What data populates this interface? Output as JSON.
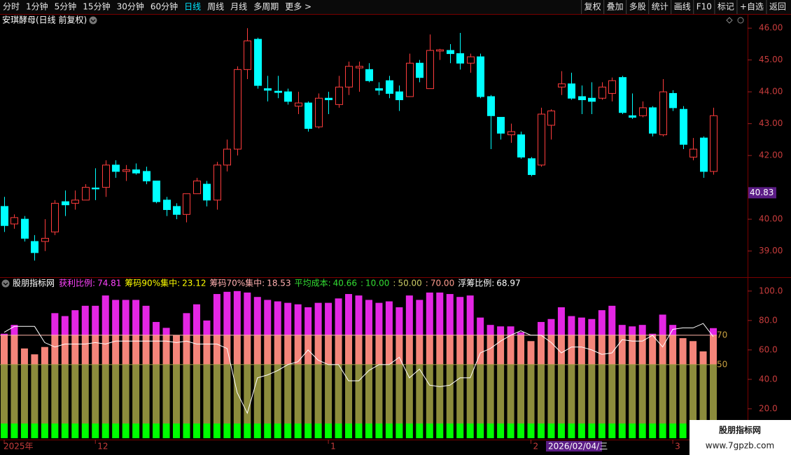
{
  "toolbar_left": [
    "分时",
    "1分钟",
    "5分钟",
    "15分钟",
    "30分钟",
    "60分钟",
    "日线",
    "周线",
    "月线",
    "多周期",
    "更多 >"
  ],
  "toolbar_active": 6,
  "toolbar_right": [
    "复权",
    "叠加",
    "多股",
    "统计",
    "画线",
    "F10",
    "标记",
    "+自选",
    "返回"
  ],
  "watermark": {
    "name": "股朋指标网",
    "url": "www.7gpzb.com"
  },
  "chart_data": [
    {
      "type": "candlestick",
      "title": "安琪酵母(日线 前复权)",
      "categories": [
        "2025年",
        null,
        null,
        null,
        null,
        null,
        null,
        null,
        null,
        "12",
        null,
        null,
        null,
        null,
        null,
        null,
        null,
        null,
        null,
        null,
        null,
        null,
        null,
        null,
        null,
        null,
        null,
        null,
        null,
        null,
        null,
        null,
        "1",
        null,
        null,
        null,
        null,
        null,
        null,
        null,
        null,
        null,
        null,
        null,
        null,
        null,
        null,
        null,
        null,
        null,
        null,
        null,
        "2",
        null,
        null,
        null,
        null,
        null,
        null,
        null,
        null,
        null,
        null,
        null,
        null,
        null,
        "3",
        null,
        null,
        null,
        null
      ],
      "open": [
        40.4,
        39.85,
        40.0,
        39.3,
        39.3,
        39.6,
        40.55,
        40.5,
        40.6,
        40.98,
        41.0,
        41.7,
        41.5,
        41.55,
        41.5,
        41.2,
        40.6,
        40.4,
        40.15,
        40.8,
        41.1,
        40.6,
        41.7,
        42.2,
        44.7,
        45.65,
        44.1,
        44.02,
        44.0,
        43.55,
        43.65,
        42.9,
        43.8,
        43.6,
        44.15,
        44.75,
        44.7,
        44.1,
        44.35,
        44.0,
        43.85,
        44.9,
        44.1,
        45.28,
        45.3,
        45.2,
        44.9,
        45.1,
        43.85,
        43.2,
        42.65,
        42.65,
        41.9,
        41.7,
        42.95,
        44.15,
        44.25,
        43.85,
        43.8,
        43.8,
        43.95,
        44.45,
        43.25,
        43.25,
        43.5,
        42.65,
        43.95,
        43.45,
        41.95,
        42.55,
        41.5
      ],
      "high": [
        40.7,
        40.15,
        40.1,
        39.5,
        40.0,
        40.6,
        40.9,
        40.9,
        41.1,
        41.6,
        41.85,
        41.85,
        41.7,
        41.75,
        41.65,
        41.2,
        40.7,
        40.5,
        40.8,
        41.3,
        41.2,
        41.8,
        42.5,
        44.8,
        46.0,
        45.7,
        44.5,
        44.5,
        44.1,
        44.0,
        43.7,
        43.95,
        44.0,
        44.5,
        44.95,
        44.95,
        44.9,
        44.3,
        44.5,
        44.2,
        45.2,
        45.0,
        45.8,
        45.35,
        45.5,
        45.85,
        45.2,
        45.2,
        43.9,
        43.2,
        43.0,
        42.75,
        41.95,
        43.5,
        43.45,
        44.65,
        44.6,
        44.2,
        44.3,
        44.3,
        44.45,
        44.5,
        43.95,
        43.7,
        43.55,
        44.4,
        44.05,
        43.55,
        42.55,
        42.6,
        43.5
      ],
      "low": [
        39.6,
        39.7,
        39.3,
        38.7,
        39.0,
        39.5,
        40.1,
        40.3,
        40.6,
        40.6,
        40.7,
        41.3,
        41.2,
        41.4,
        41.1,
        40.5,
        40.1,
        40.0,
        39.9,
        40.8,
        40.4,
        40.3,
        41.5,
        42.0,
        44.4,
        44.1,
        43.7,
        43.8,
        43.6,
        43.3,
        42.75,
        42.85,
        43.3,
        43.5,
        43.9,
        44.0,
        44.3,
        43.9,
        43.8,
        43.4,
        43.85,
        44.3,
        44.1,
        45.0,
        44.9,
        44.7,
        44.6,
        43.8,
        42.2,
        42.5,
        42.4,
        41.9,
        41.35,
        41.65,
        42.5,
        43.9,
        43.75,
        43.3,
        43.3,
        43.75,
        43.7,
        43.3,
        43.15,
        43.2,
        42.6,
        42.6,
        43.4,
        42.2,
        41.85,
        41.3,
        41.4
      ],
      "close": [
        39.8,
        40.05,
        39.4,
        38.95,
        39.4,
        40.5,
        40.45,
        40.6,
        41.0,
        40.95,
        41.7,
        41.5,
        41.55,
        41.45,
        41.2,
        40.55,
        40.3,
        40.15,
        40.8,
        41.2,
        40.6,
        41.7,
        42.2,
        44.7,
        45.6,
        44.2,
        44.05,
        43.98,
        43.7,
        43.65,
        42.85,
        43.8,
        43.75,
        44.15,
        44.8,
        44.8,
        44.35,
        44.05,
        43.95,
        43.75,
        44.9,
        44.45,
        45.3,
        45.32,
        45.2,
        44.9,
        45.1,
        43.85,
        43.25,
        42.7,
        42.75,
        41.95,
        41.4,
        43.3,
        43.4,
        44.25,
        43.8,
        43.75,
        43.7,
        44.15,
        44.35,
        43.35,
        43.2,
        43.5,
        42.7,
        44.0,
        43.5,
        42.35,
        42.2,
        41.5,
        43.25
      ],
      "up_color": "#ff3c3c",
      "down_color": "#00ffff",
      "ylim": [
        38.2,
        46.4
      ],
      "yticks": [
        {
          "value": 39,
          "label": "39.00"
        },
        {
          "value": 40,
          "label": "40.00"
        },
        {
          "value": 42,
          "label": "42.00"
        },
        {
          "value": 43,
          "label": "43.00"
        },
        {
          "value": 44,
          "label": "44.00"
        },
        {
          "value": 45,
          "label": "45.00"
        },
        {
          "value": 46,
          "label": "46.00"
        }
      ],
      "cursor_price": 40.83,
      "cursor_date": "2026/02/04/三"
    },
    {
      "type": "bar",
      "title": "股朋指标网",
      "readouts": [
        {
          "label": "获利比例:",
          "value": 74.81,
          "color": "#ff44ff"
        },
        {
          "label": "筹码90%集中:",
          "value": 23.12,
          "color": "#ffff00"
        },
        {
          "label": "筹码70%集中:",
          "value": 18.53,
          "color": "#ffb0b0"
        },
        {
          "label": "平均成本:",
          "value": 40.66,
          "color": "#33dd33"
        },
        {
          "label": ":",
          "value": {
            "value": 10,
            "label": "10.00"
          },
          "color": "#33dd33"
        },
        {
          "label": ":",
          "value": {
            "value": 50,
            "label": "50.00"
          },
          "color": "#cccc66"
        },
        {
          "label": ":",
          "value": {
            "value": 70,
            "label": "70.00"
          },
          "color": "#ff9d8f"
        },
        {
          "label": "浮筹比例:",
          "value": 68.97,
          "color": "#ffffff"
        }
      ],
      "series": [
        {
          "kind": "bar",
          "values": [
            71,
            77,
            61,
            57,
            62,
            85,
            83,
            87,
            90,
            90,
            97,
            94,
            94,
            94,
            90,
            79,
            75,
            70,
            85,
            91,
            80,
            98,
            99.5,
            100,
            99,
            96,
            94,
            93,
            92,
            91,
            89,
            92,
            92,
            95,
            98,
            97,
            94,
            92,
            93,
            89,
            97,
            94,
            99,
            99,
            98,
            96,
            97,
            82,
            77,
            76,
            76,
            72,
            66,
            79,
            81,
            89,
            83,
            82,
            81,
            87,
            90,
            77,
            76,
            77,
            71,
            84,
            77,
            68,
            66,
            59,
            74.81
          ]
        },
        {
          "kind": "line",
          "color": "#ffffff",
          "values": [
            72,
            76,
            76,
            76,
            65,
            62,
            64,
            64,
            64,
            65,
            64,
            66,
            66,
            66,
            66,
            66,
            66,
            65,
            66,
            64,
            64,
            64,
            61,
            31,
            17,
            41,
            43,
            46,
            50,
            52,
            60,
            53,
            50,
            50,
            39,
            39,
            46,
            50,
            50,
            55,
            41,
            47,
            36,
            35,
            36,
            41,
            41,
            58,
            61,
            66,
            70,
            73,
            70,
            70,
            65,
            58,
            62,
            62,
            60,
            57,
            58,
            67,
            66,
            66,
            70,
            62,
            74,
            75,
            75,
            78,
            68.97
          ]
        }
      ],
      "band_colors": [
        "#00ff00",
        "#8c8c3c",
        "#f4857a",
        "#e426e4"
      ],
      "ref_lines": [
        {
          "value": 70,
          "color": "#ffb4a8"
        },
        {
          "value": 50,
          "color": "#9a9a40"
        }
      ],
      "ylim": [
        0,
        108
      ],
      "yticks": [
        {
          "value": 20,
          "label": "20.0"
        },
        {
          "value": 40,
          "label": "40.0"
        },
        {
          "value": 60,
          "label": "60.0"
        },
        {
          "value": 80,
          "label": "80.0"
        },
        {
          "value": 100,
          "label": "100.0"
        }
      ]
    }
  ]
}
